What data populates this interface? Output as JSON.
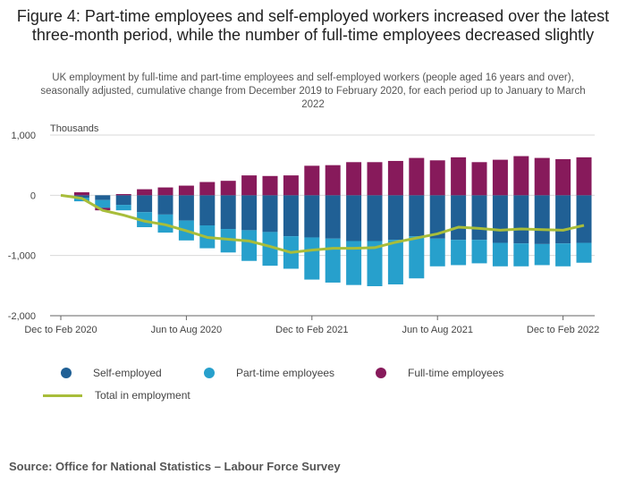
{
  "title": "Figure 4: Part-time employees and self-employed workers increased over the latest three-month period, while the number of full-time employees decreased slightly",
  "subtitle": "UK employment by full-time and part-time employees and self-employed workers (people aged 16 years and over), seasonally adjusted, cumulative change from December 2019 to February 2020, for each period up to January to March 2022",
  "source": "Source: Office for National Statistics – Labour Force Survey",
  "colors": {
    "self_employed": "#206095",
    "part_time": "#27a0cc",
    "full_time": "#871a5b",
    "total": "#a8bd3a",
    "grid": "#d9d9d9",
    "axis": "#666666"
  },
  "chart_data": {
    "type": "bar",
    "unit_label": "Thousands",
    "ylim": [
      -2000,
      1000
    ],
    "yticks": [
      1000,
      0,
      -1000,
      -2000
    ],
    "ytick_labels": [
      "1,000",
      "0",
      "-1,000",
      "-2,000"
    ],
    "x_tick_labels": [
      "Dec to Feb 2020",
      "Jun to Aug 2020",
      "Dec to Feb 2021",
      "Jun to Aug 2021",
      "Dec to Feb 2022"
    ],
    "x_tick_indices": [
      0,
      6,
      12,
      18,
      24
    ],
    "series": [
      {
        "name": "Self-employed",
        "values": [
          0,
          -40,
          -80,
          -160,
          -280,
          -320,
          -420,
          -500,
          -560,
          -580,
          -610,
          -680,
          -700,
          -720,
          -760,
          -760,
          -740,
          -680,
          -720,
          -740,
          -740,
          -790,
          -800,
          -810,
          -800,
          -790
        ]
      },
      {
        "name": "Part-time employees",
        "values": [
          0,
          -60,
          -130,
          -90,
          -250,
          -300,
          -330,
          -380,
          -390,
          -510,
          -560,
          -540,
          -700,
          -730,
          -730,
          -750,
          -740,
          -700,
          -460,
          -420,
          -390,
          -390,
          -380,
          -350,
          -380,
          -330
        ]
      },
      {
        "name": "Full-time employees",
        "values": [
          0,
          50,
          -40,
          20,
          100,
          130,
          160,
          220,
          240,
          330,
          320,
          330,
          490,
          500,
          550,
          550,
          570,
          620,
          580,
          630,
          550,
          590,
          650,
          620,
          600,
          630
        ]
      },
      {
        "name": "Total in employment",
        "values": [
          0,
          -50,
          -250,
          -330,
          -430,
          -490,
          -590,
          -700,
          -730,
          -760,
          -850,
          -950,
          -910,
          -880,
          -880,
          -870,
          -780,
          -710,
          -640,
          -530,
          -550,
          -580,
          -560,
          -570,
          -580,
          -500
        ]
      }
    ]
  },
  "legend": [
    "Self-employed",
    "Part-time employees",
    "Full-time employees",
    "Total in employment"
  ]
}
